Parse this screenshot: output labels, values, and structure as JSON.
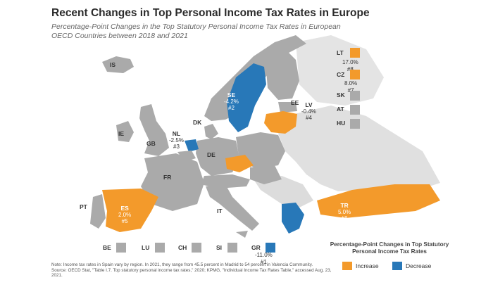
{
  "title": "Recent Changes in Top Personal Income Tax Rates in Europe",
  "subtitle": "Percentage-Point Changes in the Top Statutory Personal Income Tax Rates in European OECD Countries between 2018 and 2021",
  "colors": {
    "increase": "#f39a2b",
    "decrease": "#2878b8",
    "no_change": "#aaaaaa",
    "non_oecd": "#e0e0e0"
  },
  "map_labels": {
    "is": "IS",
    "ie": "IE",
    "gb": "GB",
    "fr": "FR",
    "de": "DE",
    "dk": "DK",
    "it": "IT",
    "pt": "PT",
    "ee": "EE",
    "se": {
      "code": "SE",
      "value": "-4.2%",
      "rank": "#2"
    },
    "lv": {
      "code": "LV",
      "value": "-0.4%",
      "rank": "#4"
    },
    "nl": {
      "code": "NL",
      "value": "-2.5%",
      "rank": "#3"
    },
    "es": {
      "code": "ES",
      "value": "2.0%",
      "rank": "#5"
    },
    "tr": {
      "code": "TR",
      "value": "5.0%",
      "rank": "#6"
    }
  },
  "side_items": [
    {
      "code": "LT",
      "value": "17.0%",
      "rank": "#8",
      "status": "increase"
    },
    {
      "code": "CZ",
      "value": "8.0%",
      "rank": "#7",
      "status": "increase"
    },
    {
      "code": "SK",
      "status": "none"
    },
    {
      "code": "AT",
      "status": "none"
    },
    {
      "code": "HU",
      "status": "none"
    }
  ],
  "bottom_items": [
    {
      "code": "BE",
      "status": "none"
    },
    {
      "code": "LU",
      "status": "none"
    },
    {
      "code": "CH",
      "status": "none"
    },
    {
      "code": "SI",
      "status": "none"
    },
    {
      "code": "GR",
      "value": "-11.0%",
      "rank": "#1",
      "status": "decrease"
    }
  ],
  "legend": {
    "title": "Percentage-Point Changes in Top Statutory Personal Income Tax Rates",
    "increase": "Increase",
    "decrease": "Decrease"
  },
  "note": {
    "line1": "Note: Income tax rates in Spain vary by region. In 2021, they range from 45.5 percent in Madrid to 54 percent in Valencia Community.",
    "line2": "Source: OECD Stat, \"Table I.7. Top statutory personal income tax rates,\" 2020; KPMG, \"Individual Income Tax Rates Table,\" accessed Aug. 23, 2021."
  }
}
